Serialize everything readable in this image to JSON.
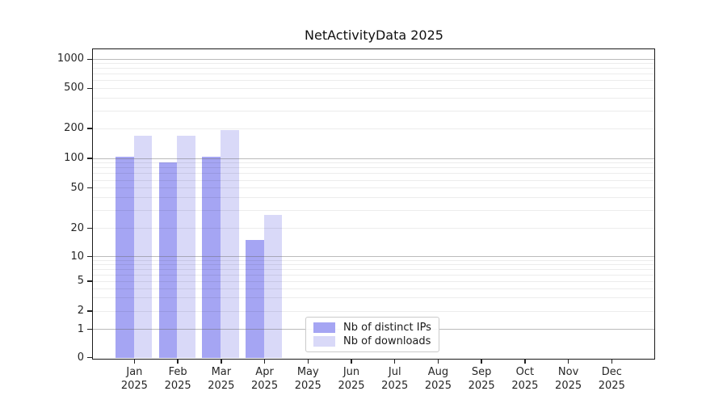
{
  "title": "NetActivityData 2025",
  "chart_data": {
    "type": "bar",
    "title": "NetActivityData 2025",
    "categories": [
      "Jan 2025",
      "Feb 2025",
      "Mar 2025",
      "Apr 2025",
      "May 2025",
      "Jun 2025",
      "Jul 2025",
      "Aug 2025",
      "Sep 2025",
      "Oct 2025",
      "Nov 2025",
      "Dec 2025"
    ],
    "series": [
      {
        "name": "Nb of distinct IPs",
        "color": "#a5a5f3",
        "values": [
          103,
          91,
          104,
          15,
          0,
          0,
          0,
          0,
          0,
          0,
          0,
          0
        ]
      },
      {
        "name": "Nb of downloads",
        "color": "#d9d9f8",
        "values": [
          167,
          167,
          190,
          27,
          0,
          0,
          0,
          0,
          0,
          0,
          0,
          0
        ]
      }
    ],
    "xlabel": "",
    "ylabel": "",
    "y_axis": {
      "scale": "symlog",
      "ticks": [
        1000,
        500,
        200,
        100,
        50,
        20,
        10,
        5,
        2,
        1,
        0
      ],
      "tick_labels": [
        "1000",
        "500",
        "200",
        "100",
        "50",
        "20",
        "10",
        "5",
        "2",
        "1",
        "0"
      ],
      "ylim": [
        0,
        1300
      ]
    },
    "grid": true,
    "legend_position": "lower center"
  }
}
